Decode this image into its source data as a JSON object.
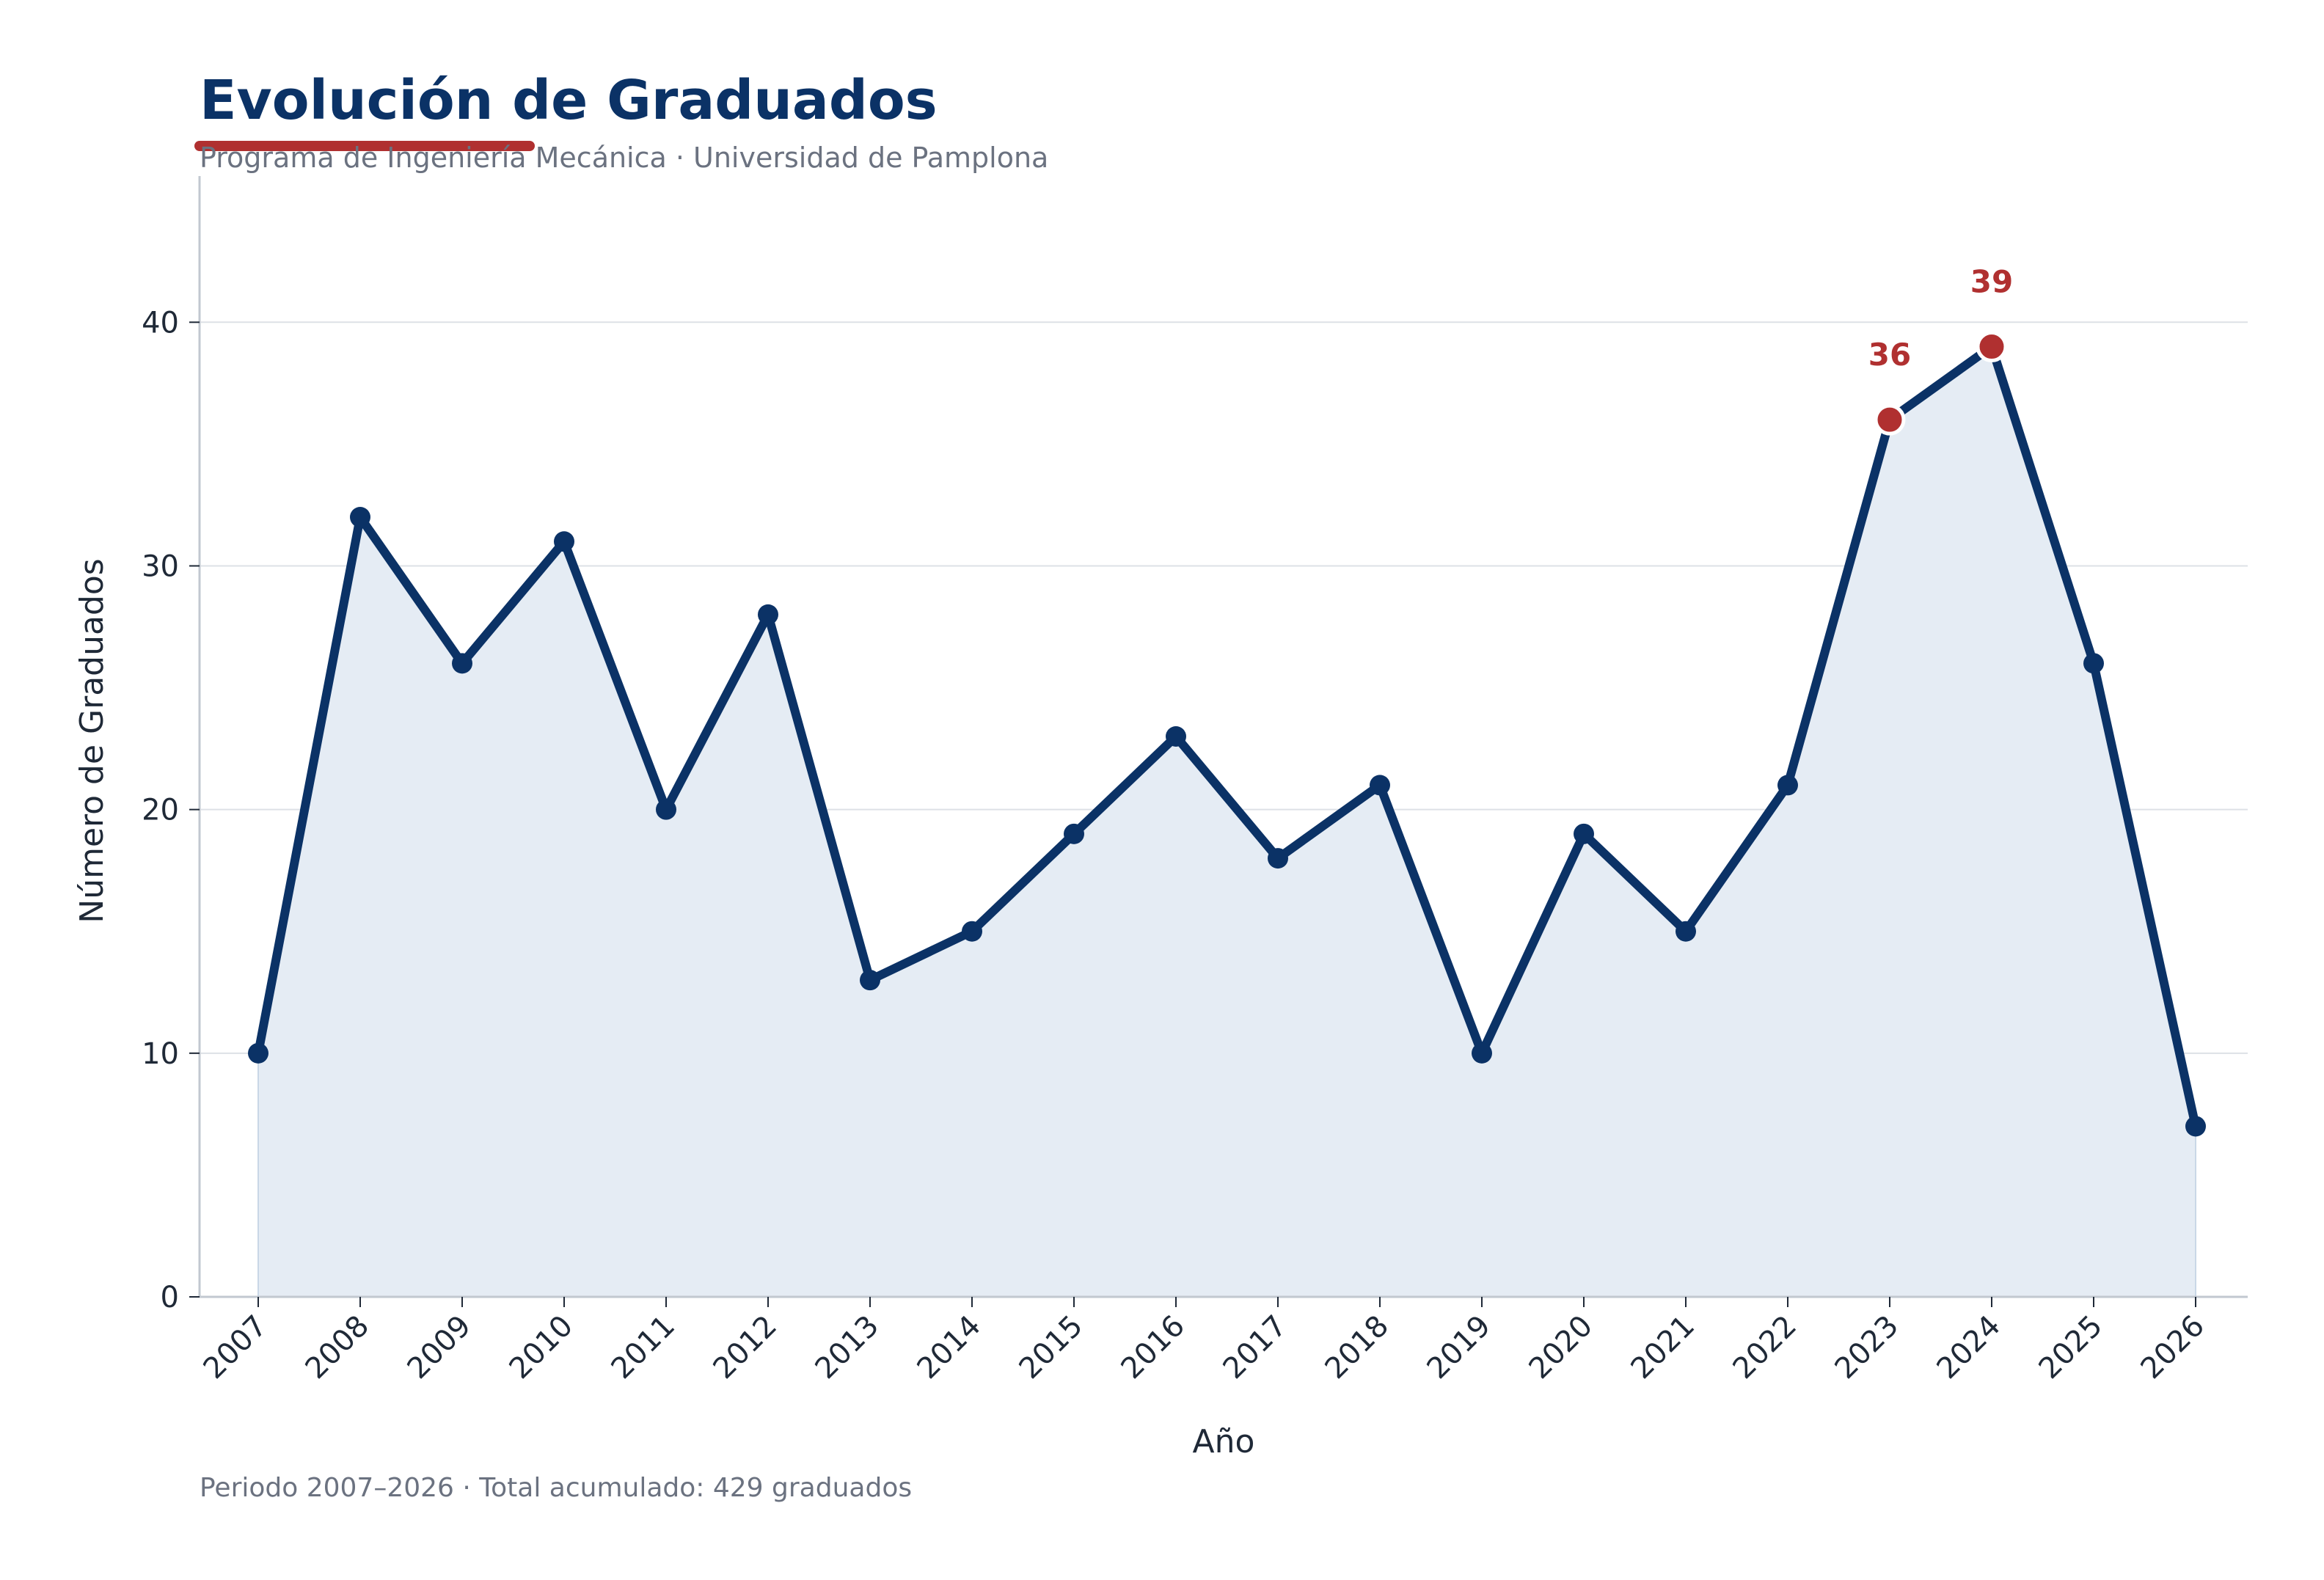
{
  "header": {
    "title": "Evolución de Graduados",
    "subtitle": "Programa de Ingeniería Mecánica · Universidad de Pamplona"
  },
  "footer": {
    "note": "Periodo 2007–2026 · Total acumulado: 429 graduados"
  },
  "colors": {
    "title": "#0b3266",
    "line": "#0b3266",
    "fill": "#e5ecf4",
    "accent": "#b03030",
    "muted": "#6b7280",
    "grid": "#dde1e6",
    "axis": "#c2c8d0",
    "text": "#1f2937"
  },
  "chart_data": {
    "type": "area",
    "x": [
      "2007",
      "2008",
      "2009",
      "2010",
      "2011",
      "2012",
      "2013",
      "2014",
      "2015",
      "2016",
      "2017",
      "2018",
      "2019",
      "2020",
      "2021",
      "2022",
      "2023",
      "2024",
      "2025",
      "2026"
    ],
    "values": [
      10,
      32,
      26,
      31,
      20,
      28,
      13,
      15,
      19,
      23,
      18,
      21,
      10,
      19,
      15,
      21,
      36,
      39,
      26,
      7
    ],
    "xlabel": "Año",
    "ylabel": "Número de Graduados",
    "ylim": [
      0,
      46
    ],
    "yticks": [
      0,
      10,
      20,
      30,
      40
    ],
    "grid": "y",
    "highlighted": [
      {
        "x": "2023",
        "value": 36,
        "label": "36"
      },
      {
        "x": "2024",
        "value": 39,
        "label": "39"
      }
    ]
  }
}
